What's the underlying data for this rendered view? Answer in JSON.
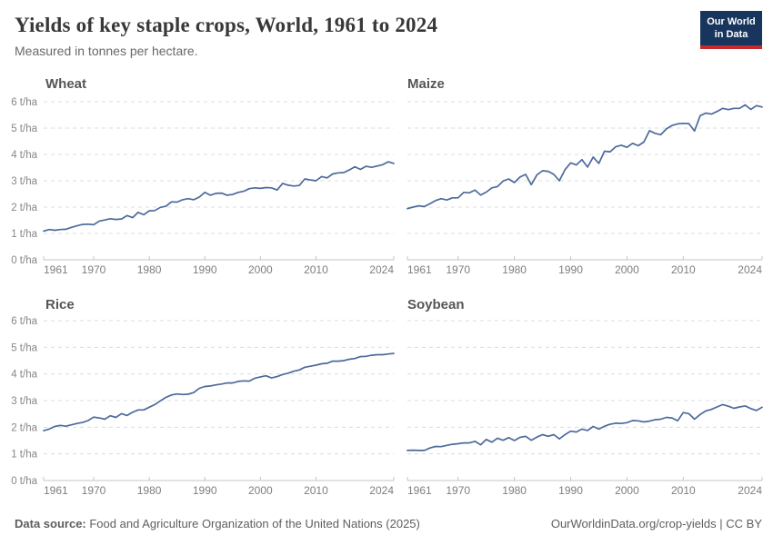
{
  "header": {
    "title": "Yields of key staple crops, World, 1961 to 2024",
    "subtitle": "Measured in tonnes per hectare.",
    "logo_line1": "Our World",
    "logo_line2": "in Data"
  },
  "footer": {
    "source_label": "Data source:",
    "source_text": " Food and Agriculture Organization of the United Nations (2025)",
    "credit": "OurWorldinData.org/crop-yields | CC BY"
  },
  "colors": {
    "line": "#4c6a9c",
    "grid": "#dcdcdc",
    "axis": "#c4c4c4",
    "logo_bg": "#18365d",
    "logo_bar": "#c5292e",
    "title_text": "#383838",
    "muted_text": "#696969"
  },
  "chart_data": {
    "type": "line",
    "title": "Yields of key staple crops, World, 1961 to 2024",
    "subtitle": "Measured in tonnes per hectare.",
    "unit": "t/ha",
    "x_start": 1961,
    "x_end": 2024,
    "x_ticks": [
      1961,
      1970,
      1980,
      1990,
      2000,
      2010,
      2024
    ],
    "y_ticks": [
      0,
      1,
      2,
      3,
      4,
      5,
      6
    ],
    "y_tick_labels": [
      "0 t/ha",
      "1 t/ha",
      "2 t/ha",
      "3 t/ha",
      "4 t/ha",
      "5 t/ha",
      "6 t/ha"
    ],
    "ylim": [
      0,
      6
    ],
    "grid": "dashed-horizontal",
    "legend": "none",
    "charts": [
      {
        "title": "Wheat",
        "values": [
          1.09,
          1.15,
          1.12,
          1.15,
          1.16,
          1.23,
          1.29,
          1.34,
          1.35,
          1.33,
          1.47,
          1.51,
          1.56,
          1.53,
          1.55,
          1.68,
          1.6,
          1.8,
          1.71,
          1.86,
          1.87,
          1.99,
          2.03,
          2.2,
          2.19,
          2.28,
          2.32,
          2.28,
          2.38,
          2.56,
          2.45,
          2.52,
          2.53,
          2.45,
          2.48,
          2.56,
          2.6,
          2.7,
          2.73,
          2.71,
          2.74,
          2.73,
          2.65,
          2.9,
          2.83,
          2.8,
          2.82,
          3.07,
          3.03,
          3.0,
          3.16,
          3.11,
          3.26,
          3.3,
          3.31,
          3.41,
          3.53,
          3.43,
          3.55,
          3.51,
          3.56,
          3.61,
          3.72,
          3.66
        ]
      },
      {
        "title": "Maize",
        "values": [
          1.94,
          2.0,
          2.05,
          2.02,
          2.13,
          2.25,
          2.32,
          2.27,
          2.35,
          2.35,
          2.56,
          2.54,
          2.65,
          2.46,
          2.57,
          2.73,
          2.78,
          2.99,
          3.07,
          2.93,
          3.14,
          3.24,
          2.85,
          3.22,
          3.38,
          3.36,
          3.24,
          3.0,
          3.42,
          3.68,
          3.6,
          3.8,
          3.52,
          3.9,
          3.66,
          4.12,
          4.1,
          4.29,
          4.35,
          4.27,
          4.42,
          4.33,
          4.47,
          4.9,
          4.8,
          4.75,
          4.97,
          5.1,
          5.16,
          5.18,
          5.17,
          4.89,
          5.47,
          5.57,
          5.53,
          5.63,
          5.75,
          5.7,
          5.75,
          5.75,
          5.88,
          5.71,
          5.85,
          5.8
        ]
      },
      {
        "title": "Rice",
        "values": [
          1.87,
          1.93,
          2.03,
          2.07,
          2.04,
          2.09,
          2.14,
          2.18,
          2.25,
          2.38,
          2.35,
          2.3,
          2.43,
          2.37,
          2.51,
          2.44,
          2.56,
          2.65,
          2.65,
          2.75,
          2.85,
          2.99,
          3.12,
          3.21,
          3.25,
          3.23,
          3.24,
          3.3,
          3.46,
          3.53,
          3.55,
          3.59,
          3.62,
          3.66,
          3.66,
          3.72,
          3.74,
          3.73,
          3.84,
          3.89,
          3.93,
          3.85,
          3.9,
          3.98,
          4.03,
          4.1,
          4.15,
          4.25,
          4.29,
          4.33,
          4.38,
          4.4,
          4.48,
          4.48,
          4.5,
          4.55,
          4.58,
          4.65,
          4.66,
          4.7,
          4.72,
          4.72,
          4.75,
          4.77
        ]
      },
      {
        "title": "Soybean",
        "values": [
          1.13,
          1.14,
          1.13,
          1.13,
          1.22,
          1.28,
          1.27,
          1.32,
          1.36,
          1.38,
          1.41,
          1.41,
          1.47,
          1.34,
          1.54,
          1.44,
          1.59,
          1.51,
          1.61,
          1.5,
          1.62,
          1.66,
          1.51,
          1.63,
          1.72,
          1.66,
          1.72,
          1.56,
          1.72,
          1.85,
          1.82,
          1.93,
          1.88,
          2.03,
          1.93,
          2.04,
          2.11,
          2.15,
          2.14,
          2.17,
          2.25,
          2.24,
          2.2,
          2.23,
          2.28,
          2.3,
          2.37,
          2.35,
          2.24,
          2.55,
          2.51,
          2.3,
          2.48,
          2.61,
          2.67,
          2.76,
          2.85,
          2.79,
          2.71,
          2.76,
          2.8,
          2.7,
          2.63,
          2.75
        ]
      }
    ]
  }
}
